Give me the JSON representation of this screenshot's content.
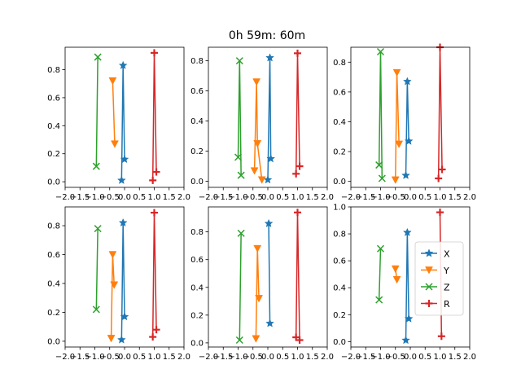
{
  "figure": {
    "title": "0h 59m: 60m",
    "background": "#ffffff"
  },
  "legend_panel": 5,
  "legend_placement": "right",
  "chart_data": [
    {
      "type": "line",
      "panel": 0,
      "xlim": [
        -2,
        2
      ],
      "ylim": [
        -0.04,
        0.96
      ],
      "xticks": [
        "-2.0",
        "-1.5",
        "-1.0",
        "-0.5",
        "0.0",
        "0.5",
        "1.0",
        "1.5",
        "2.0"
      ],
      "yticks": [
        "0.0",
        "0.2",
        "0.4",
        "0.6",
        "0.8"
      ],
      "grid": false,
      "series": [
        {
          "name": "X",
          "color": "#1f77b4",
          "marker": "star",
          "x": [
            -0.1,
            -0.05,
            0.0
          ],
          "y": [
            0.01,
            0.83,
            0.16
          ]
        },
        {
          "name": "Y",
          "color": "#ff7f0e",
          "marker": "triangle-down",
          "x": [
            -0.4,
            -0.33
          ],
          "y": [
            0.72,
            0.27
          ]
        },
        {
          "name": "Z",
          "color": "#2ca02c",
          "marker": "x",
          "x": [
            -0.95,
            -0.9
          ],
          "y": [
            0.11,
            0.89
          ]
        },
        {
          "name": "R",
          "color": "#d62728",
          "marker": "plus",
          "x": [
            0.95,
            1.0,
            1.07
          ],
          "y": [
            0.01,
            0.92,
            0.07
          ]
        }
      ]
    },
    {
      "type": "line",
      "panel": 1,
      "xlim": [
        -2,
        2
      ],
      "ylim": [
        -0.04,
        0.89
      ],
      "xticks": [
        "-2.0",
        "-1.5",
        "-1.0",
        "-0.5",
        "0.0",
        "0.5",
        "1.0",
        "1.5",
        "2.0"
      ],
      "yticks": [
        "0.0",
        "0.2",
        "0.4",
        "0.6",
        "0.8"
      ],
      "grid": false,
      "series": [
        {
          "name": "X",
          "color": "#1f77b4",
          "marker": "star",
          "x": [
            0.0,
            0.07,
            0.1
          ],
          "y": [
            0.01,
            0.82,
            0.15
          ]
        },
        {
          "name": "Y",
          "color": "#ff7f0e",
          "marker": "triangle-down",
          "x": [
            -0.45,
            -0.38,
            -0.35,
            -0.2
          ],
          "y": [
            0.07,
            0.66,
            0.25,
            0.01
          ]
        },
        {
          "name": "Z",
          "color": "#2ca02c",
          "marker": "x",
          "x": [
            -1.0,
            -0.95,
            -0.9
          ],
          "y": [
            0.16,
            0.8,
            0.04
          ]
        },
        {
          "name": "R",
          "color": "#d62728",
          "marker": "plus",
          "x": [
            0.95,
            1.0,
            1.07
          ],
          "y": [
            0.05,
            0.85,
            0.1
          ]
        }
      ]
    },
    {
      "type": "line",
      "panel": 2,
      "xlim": [
        -2,
        2
      ],
      "ylim": [
        -0.04,
        0.9
      ],
      "xticks": [
        "-2.0",
        "-1.5",
        "-1.0",
        "-0.5",
        "0.0",
        "0.5",
        "1.0",
        "1.5",
        "2.0"
      ],
      "yticks": [
        "0.0",
        "0.2",
        "0.4",
        "0.6",
        "0.8"
      ],
      "grid": false,
      "series": [
        {
          "name": "X",
          "color": "#1f77b4",
          "marker": "star",
          "x": [
            -0.15,
            -0.1,
            -0.05
          ],
          "y": [
            0.04,
            0.67,
            0.27
          ]
        },
        {
          "name": "Y",
          "color": "#ff7f0e",
          "marker": "triangle-down",
          "x": [
            -0.5,
            -0.45,
            -0.38
          ],
          "y": [
            0.01,
            0.73,
            0.25
          ]
        },
        {
          "name": "Z",
          "color": "#2ca02c",
          "marker": "x",
          "x": [
            -1.05,
            -1.0,
            -0.95
          ],
          "y": [
            0.11,
            0.87,
            0.02
          ]
        },
        {
          "name": "R",
          "color": "#d62728",
          "marker": "plus",
          "x": [
            0.95,
            1.0,
            1.07
          ],
          "y": [
            0.02,
            0.9,
            0.08
          ]
        }
      ]
    },
    {
      "type": "line",
      "panel": 3,
      "xlim": [
        -2,
        2
      ],
      "ylim": [
        -0.04,
        0.93
      ],
      "xticks": [
        "-2.0",
        "-1.5",
        "-1.0",
        "-0.5",
        "0.0",
        "0.5",
        "1.0",
        "1.5",
        "2.0"
      ],
      "yticks": [
        "0.0",
        "0.2",
        "0.4",
        "0.6",
        "0.8"
      ],
      "grid": false,
      "series": [
        {
          "name": "X",
          "color": "#1f77b4",
          "marker": "star",
          "x": [
            -0.1,
            -0.05,
            0.0
          ],
          "y": [
            0.01,
            0.82,
            0.17
          ]
        },
        {
          "name": "Y",
          "color": "#ff7f0e",
          "marker": "triangle-down",
          "x": [
            -0.45,
            -0.4,
            -0.35
          ],
          "y": [
            0.02,
            0.6,
            0.39
          ]
        },
        {
          "name": "Z",
          "color": "#2ca02c",
          "marker": "x",
          "x": [
            -0.95,
            -0.9
          ],
          "y": [
            0.22,
            0.78
          ]
        },
        {
          "name": "R",
          "color": "#d62728",
          "marker": "plus",
          "x": [
            0.95,
            1.0,
            1.07
          ],
          "y": [
            0.03,
            0.89,
            0.08
          ]
        }
      ]
    },
    {
      "type": "line",
      "panel": 4,
      "xlim": [
        -2,
        2
      ],
      "ylim": [
        -0.03,
        0.98
      ],
      "xticks": [
        "-2.0",
        "-1.5",
        "-1.0",
        "-0.5",
        "0.0",
        "0.5",
        "1.0",
        "1.5",
        "2.0"
      ],
      "yticks": [
        "0.0",
        "0.2",
        "0.4",
        "0.6",
        "0.8"
      ],
      "grid": false,
      "series": [
        {
          "name": "X",
          "color": "#1f77b4",
          "marker": "star",
          "x": [
            0.03,
            0.07
          ],
          "y": [
            0.86,
            0.14
          ]
        },
        {
          "name": "Y",
          "color": "#ff7f0e",
          "marker": "triangle-down",
          "x": [
            -0.4,
            -0.35,
            -0.3
          ],
          "y": [
            0.03,
            0.68,
            0.32
          ]
        },
        {
          "name": "Z",
          "color": "#2ca02c",
          "marker": "x",
          "x": [
            -0.95,
            -0.9
          ],
          "y": [
            0.02,
            0.79
          ]
        },
        {
          "name": "R",
          "color": "#d62728",
          "marker": "plus",
          "x": [
            0.95,
            1.0,
            1.07
          ],
          "y": [
            0.04,
            0.94,
            0.02
          ]
        }
      ]
    },
    {
      "type": "line",
      "panel": 5,
      "xlim": [
        -2,
        2
      ],
      "ylim": [
        -0.04,
        1.0
      ],
      "xticks": [
        "-2.0",
        "-1.5",
        "-1.0",
        "-0.5",
        "0.0",
        "0.5",
        "1.0",
        "1.5",
        "2.0"
      ],
      "yticks": [
        "0.0",
        "0.2",
        "0.4",
        "0.6",
        "0.8",
        "1.0"
      ],
      "grid": false,
      "series": [
        {
          "name": "X",
          "color": "#1f77b4",
          "marker": "star",
          "x": [
            -0.15,
            -0.1,
            -0.05
          ],
          "y": [
            0.01,
            0.81,
            0.17
          ]
        },
        {
          "name": "Y",
          "color": "#ff7f0e",
          "marker": "triangle-down",
          "x": [
            -0.5,
            -0.45
          ],
          "y": [
            0.54,
            0.46
          ]
        },
        {
          "name": "Z",
          "color": "#2ca02c",
          "marker": "x",
          "x": [
            -1.05,
            -1.0
          ],
          "y": [
            0.31,
            0.69
          ]
        },
        {
          "name": "R",
          "color": "#d62728",
          "marker": "plus",
          "x": [
            1.0,
            1.05
          ],
          "y": [
            0.96,
            0.04
          ]
        }
      ]
    }
  ]
}
